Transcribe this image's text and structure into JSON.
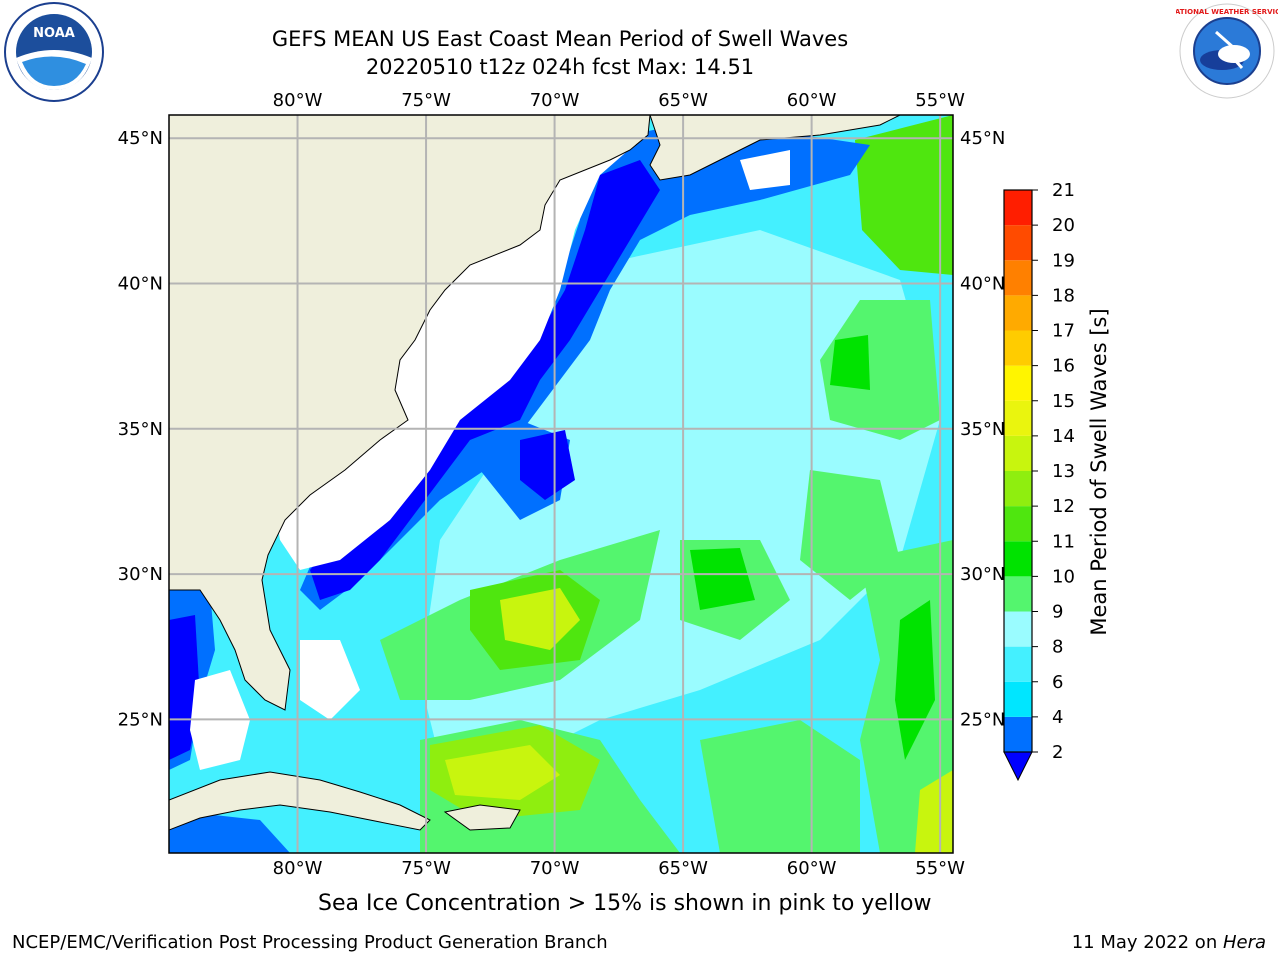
{
  "header": {
    "title_line1": "GEFS MEAN US East Coast Mean Period of Swell Waves",
    "title_line2": "20220510 t12z 024h fcst   Max: 14.51"
  },
  "map": {
    "lon_labels": [
      "80°W",
      "75°W",
      "70°W",
      "65°W",
      "60°W",
      "55°W"
    ],
    "lat_labels": [
      "45°N",
      "40°N",
      "35°N",
      "30°N",
      "25°N"
    ],
    "lon_values": [
      -80,
      -75,
      -70,
      -65,
      -60,
      -55
    ],
    "lat_values": [
      45,
      40,
      35,
      30,
      25
    ],
    "lon_range": [
      -85,
      -54.5
    ],
    "lat_range": [
      20.4,
      45.8
    ],
    "land_color": "#efefdc",
    "nodata_color": "#ffffff",
    "grid_color": "#b4b4b4"
  },
  "colorbar": {
    "label": "Mean Period of Swell Waves [s]",
    "tick_labels": [
      "2",
      "4",
      "6",
      "8",
      "9",
      "10",
      "11",
      "12",
      "13",
      "14",
      "15",
      "16",
      "17",
      "18",
      "19",
      "20",
      "21"
    ],
    "under_color": "#0000ff",
    "colors": [
      "#0070ff",
      "#00e6ff",
      "#44f0ff",
      "#9afcff",
      "#54f56e",
      "#00e300",
      "#4fe60f",
      "#8fee0f",
      "#c8f50e",
      "#eaf50e",
      "#fff500",
      "#ffcc00",
      "#ffaa00",
      "#ff8000",
      "#ff4b00",
      "#ff1e00"
    ]
  },
  "caption": "Sea Ice Concentration > 15% is shown in pink to yellow",
  "footer": {
    "left": "NCEP/EMC/Verification Post Processing Product Generation Branch",
    "right_date": "11 May 2022 on ",
    "right_host": "Hera"
  },
  "logos": {
    "noaa_text": "NOAA",
    "nws_text": "NATIONAL WEATHER SERVICE"
  }
}
